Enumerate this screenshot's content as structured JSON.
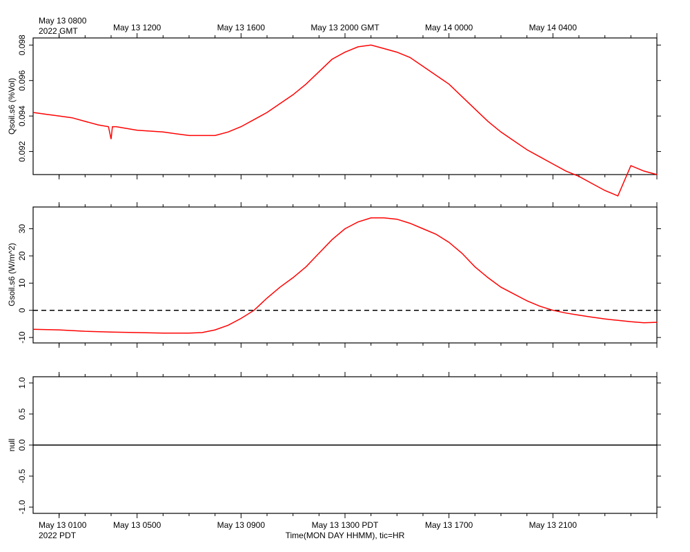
{
  "header": {
    "top_left_line1": "May 13 0800",
    "top_left_line2": "2022 GMT",
    "bottom_left_line1": "May 13 0100",
    "bottom_left_line2": "2022 PDT",
    "xlabel": "Time(MON DAY HHMM), tic=HR"
  },
  "colors": {
    "series": "#ff0000",
    "axis": "#000000",
    "background": "#ffffff"
  },
  "chart_data": [
    {
      "type": "line",
      "ylabel": "Qsoil.s6 (%Vol)",
      "ylim": [
        0.0907,
        0.0984
      ],
      "xlim": [
        0,
        24
      ],
      "x_unit": "hours since May 13 0800 GMT",
      "top_ticks": [
        {
          "x": 0,
          "label": ""
        },
        {
          "x": 4,
          "label": "May 13 1200"
        },
        {
          "x": 8,
          "label": "May 13 1600"
        },
        {
          "x": 12,
          "label": "May 13 2000 GMT"
        },
        {
          "x": 16,
          "label": "May 14 0000"
        },
        {
          "x": 20,
          "label": "May 14 0400"
        }
      ],
      "yticks": [
        0.092,
        0.094,
        0.096,
        0.098
      ],
      "ytick_labels": [
        "0.092",
        "0.094",
        "0.096",
        "0.098"
      ],
      "series": [
        {
          "x": [
            0,
            0.5,
            1,
            1.5,
            2,
            2.5,
            2.9,
            3.0,
            3.05,
            3.2,
            4,
            5,
            6,
            7,
            7.5,
            8,
            8.5,
            9,
            9.5,
            10,
            10.5,
            11,
            11.5,
            12,
            12.5,
            13,
            13.5,
            14,
            14.5,
            15,
            15.5,
            16,
            16.5,
            17,
            17.5,
            18,
            18.5,
            19,
            19.5,
            20,
            20.5,
            21,
            21.5,
            22,
            22.5,
            23,
            23.5,
            24
          ],
          "y": [
            0.0942,
            0.0941,
            0.094,
            0.0939,
            0.0937,
            0.0935,
            0.0934,
            0.0927,
            0.0934,
            0.0934,
            0.0932,
            0.0931,
            0.0929,
            0.0929,
            0.0931,
            0.0934,
            0.0938,
            0.0942,
            0.0947,
            0.0952,
            0.0958,
            0.0965,
            0.0972,
            0.0976,
            0.0979,
            0.098,
            0.0978,
            0.0976,
            0.0973,
            0.0968,
            0.0963,
            0.0958,
            0.0951,
            0.0944,
            0.0937,
            0.0931,
            0.0926,
            0.0921,
            0.0917,
            0.0913,
            0.0909,
            0.0906,
            0.0902,
            0.0898,
            0.0895,
            0.0912,
            0.0909,
            0.0907
          ]
        }
      ]
    },
    {
      "type": "line",
      "ylabel": "Gsoil.s6 (W/m^2)",
      "ylim": [
        -12,
        38
      ],
      "xlim": [
        0,
        24
      ],
      "yticks": [
        -10,
        0,
        10,
        20,
        30
      ],
      "ytick_labels": [
        "-10",
        "0",
        "10",
        "20",
        "30"
      ],
      "reference_line": {
        "y": 0,
        "style": "dashed"
      },
      "series": [
        {
          "x": [
            0,
            1,
            2,
            3,
            4,
            5,
            6,
            6.5,
            7,
            7.5,
            8,
            8.5,
            9,
            9.5,
            10,
            10.5,
            11,
            11.5,
            12,
            12.5,
            13,
            13.5,
            14,
            14.5,
            15,
            15.5,
            16,
            16.5,
            17,
            17.5,
            18,
            18.5,
            19,
            19.5,
            20,
            20.5,
            21,
            21.5,
            22,
            22.5,
            23,
            23.5,
            24
          ],
          "y": [
            -7,
            -7.2,
            -7.7,
            -8,
            -8.2,
            -8.4,
            -8.4,
            -8.2,
            -7.2,
            -5.5,
            -3,
            0,
            4.5,
            8.5,
            12,
            16,
            21,
            26,
            30,
            32.5,
            34,
            34,
            33.5,
            32,
            30,
            28,
            25,
            21,
            16,
            12,
            8.5,
            6,
            3.5,
            1.5,
            0,
            -1,
            -1.8,
            -2.5,
            -3.2,
            -3.7,
            -4.2,
            -4.6,
            -4.4
          ]
        }
      ]
    },
    {
      "type": "line",
      "ylabel": "null",
      "ylim": [
        -1.1,
        1.1
      ],
      "xlim": [
        0,
        24
      ],
      "yticks": [
        -1.0,
        -0.5,
        0.0,
        0.5,
        1.0
      ],
      "ytick_labels": [
        "-1.0",
        "-0.5",
        "0.0",
        "0.5",
        "1.0"
      ],
      "bottom_ticks": [
        {
          "x": 0,
          "label": ""
        },
        {
          "x": 4,
          "label": "May 13 0500"
        },
        {
          "x": 8,
          "label": "May 13 0900"
        },
        {
          "x": 12,
          "label": "May 13 1300 PDT"
        },
        {
          "x": 16,
          "label": "May 13 1700"
        },
        {
          "x": 20,
          "label": "May 13 2100"
        }
      ],
      "series": [
        {
          "x": [
            0,
            24
          ],
          "y": [
            0,
            0
          ],
          "color": "#000000"
        }
      ]
    }
  ]
}
